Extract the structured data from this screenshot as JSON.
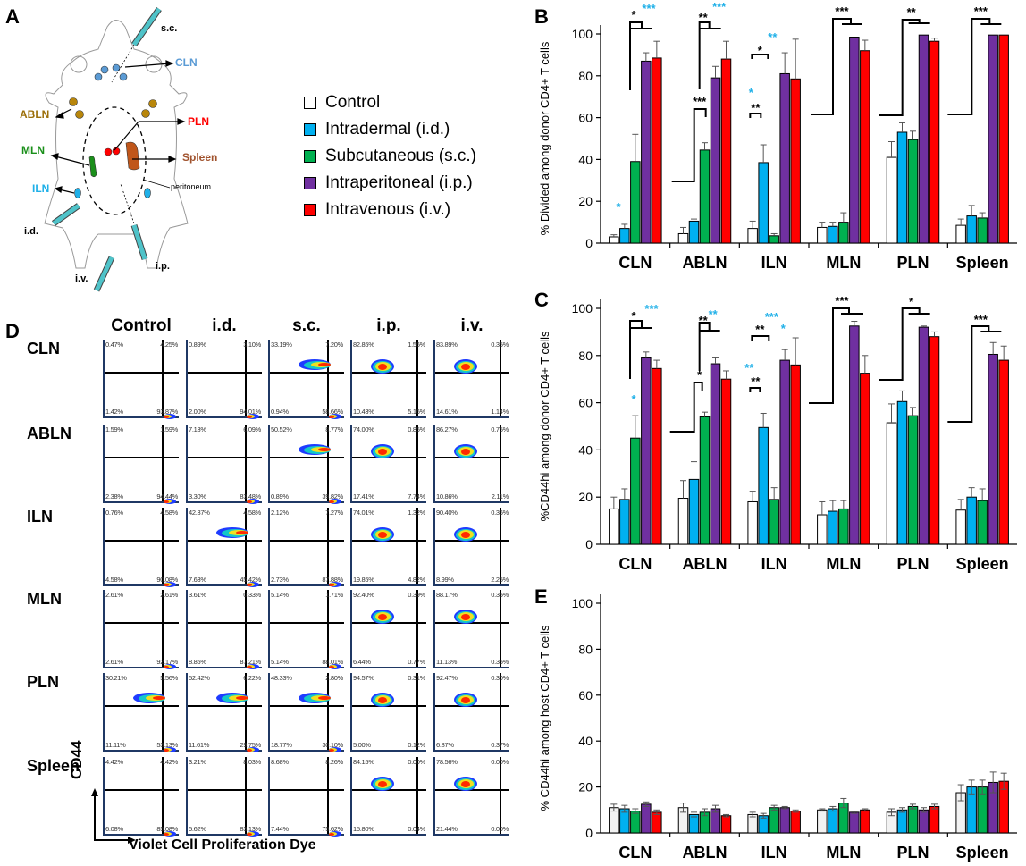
{
  "panels": {
    "A": "A",
    "B": "B",
    "C": "C",
    "D": "D",
    "E": "E"
  },
  "diagram": {
    "labels": {
      "sc": "s.c.",
      "CLN": "CLN",
      "ABLN": "ABLN",
      "PLN": "PLN",
      "MLN": "MLN",
      "Spleen": "Spleen",
      "ILN": "ILN",
      "peritoneum": "peritoneum",
      "id": "i.d.",
      "iv": "i.v.",
      "ip": "i.p."
    },
    "colors": {
      "CLN": "#5b9bd5",
      "ABLN": "#b8860b",
      "PLN": "#ff0000",
      "MLN": "#1a8f1a",
      "Spleen": "#c0561a",
      "ILN": "#1fb0e8",
      "syringe": "#4fc3c9"
    }
  },
  "legend": [
    {
      "label": "Control",
      "color": "#ffffff"
    },
    {
      "label": "Intradermal  (i.d.)",
      "color": "#00b0f0"
    },
    {
      "label": "Subcutaneous  (s.c.)",
      "color": "#00b050"
    },
    {
      "label": "Intraperitoneal  (i.p.)",
      "color": "#7030a0"
    },
    {
      "label": "Intravenous  (i.v.)",
      "color": "#ff0000"
    }
  ],
  "chart_data": [
    {
      "id": "B",
      "type": "bar",
      "title": "",
      "ylabel": "% Divided among donor CD4+  T cells",
      "xlabel": "",
      "ylim": [
        0,
        100
      ],
      "yticks": [
        0,
        20,
        40,
        60,
        80,
        100
      ],
      "grid": false,
      "categories": [
        "CLN",
        "ABLN",
        "ILN",
        "MLN",
        "PLN",
        "Spleen"
      ],
      "series": [
        {
          "name": "Control",
          "color": "#ffffff",
          "values": [
            3,
            4.5,
            7,
            7.5,
            41,
            8.5
          ],
          "errors": [
            1,
            3,
            3.5,
            2.5,
            7.5,
            3
          ]
        },
        {
          "name": "Intradermal (i.d.)",
          "color": "#00b0f0",
          "values": [
            7,
            10.5,
            38.5,
            8,
            53,
            13
          ],
          "errors": [
            2,
            1,
            8.5,
            2,
            4.5,
            5
          ]
        },
        {
          "name": "Subcutaneous (s.c.)",
          "color": "#00b050",
          "values": [
            39,
            44.5,
            3.5,
            10,
            49.5,
            12
          ],
          "errors": [
            13,
            3.5,
            1,
            4.5,
            4,
            2.5
          ]
        },
        {
          "name": "Intraperitoneal (i.p.)",
          "color": "#7030a0",
          "values": [
            87,
            79,
            81,
            98.5,
            99.5,
            99.5
          ],
          "errors": [
            4,
            5.5,
            10,
            0,
            0,
            0
          ]
        },
        {
          "name": "Intravenous (i.v.)",
          "color": "#ff0000",
          "values": [
            88.5,
            88,
            78.5,
            92,
            96.5,
            99.5
          ],
          "errors": [
            8,
            8.5,
            19,
            5,
            1.5,
            0
          ]
        }
      ],
      "annotations": [
        {
          "group": "CLN",
          "text": "*",
          "color": "black"
        },
        {
          "group": "CLN",
          "text": "***",
          "color": "cyan"
        },
        {
          "group": "CLN",
          "text": "*",
          "color": "cyan",
          "over": "Intradermal"
        },
        {
          "group": "ABLN",
          "text": "**",
          "color": "black"
        },
        {
          "group": "ABLN",
          "text": "***",
          "color": "cyan"
        },
        {
          "group": "ABLN",
          "text": "***",
          "color": "black"
        },
        {
          "group": "ILN",
          "text": "*",
          "color": "black"
        },
        {
          "group": "ILN",
          "text": "**",
          "color": "cyan"
        },
        {
          "group": "ILN",
          "text": "*",
          "color": "cyan"
        },
        {
          "group": "ILN",
          "text": "**",
          "color": "black"
        },
        {
          "group": "MLN",
          "text": "***",
          "color": "black"
        },
        {
          "group": "PLN",
          "text": "**",
          "color": "black"
        },
        {
          "group": "Spleen",
          "text": "***",
          "color": "black"
        }
      ]
    },
    {
      "id": "C",
      "type": "bar",
      "title": "",
      "ylabel": "%CD44hi  among donor CD4+  T cells",
      "xlabel": "",
      "ylim": [
        0,
        100
      ],
      "yticks": [
        0,
        20,
        40,
        60,
        80,
        100
      ],
      "grid": false,
      "categories": [
        "CLN",
        "ABLN",
        "ILN",
        "MLN",
        "PLN",
        "Spleen"
      ],
      "series": [
        {
          "name": "Control",
          "color": "#ffffff",
          "values": [
            15,
            19.5,
            18,
            12.5,
            51.5,
            14.5
          ],
          "errors": [
            5,
            7.5,
            4.5,
            5.5,
            8,
            4.5
          ]
        },
        {
          "name": "Intradermal (i.d.)",
          "color": "#00b0f0",
          "values": [
            19,
            27.5,
            49.5,
            14,
            60.5,
            20
          ],
          "errors": [
            4.5,
            7.5,
            6,
            4.5,
            4.5,
            4
          ]
        },
        {
          "name": "Subcutaneous (s.c.)",
          "color": "#00b050",
          "values": [
            45,
            54,
            19,
            15,
            54.5,
            18.5
          ],
          "errors": [
            9.5,
            2,
            5,
            3.5,
            3.5,
            5
          ]
        },
        {
          "name": "Intraperitoneal (i.p.)",
          "color": "#7030a0",
          "values": [
            79,
            76.5,
            78,
            92.5,
            92,
            80.5
          ],
          "errors": [
            2.5,
            2.5,
            4.5,
            2,
            0.5,
            5
          ]
        },
        {
          "name": "Intravenous (i.v.)",
          "color": "#ff0000",
          "values": [
            74.5,
            70,
            76,
            72.5,
            88,
            78
          ],
          "errors": [
            3.5,
            3.5,
            11.5,
            7.5,
            2,
            6
          ]
        }
      ],
      "annotations": [
        {
          "group": "CLN",
          "text": "*",
          "color": "black"
        },
        {
          "group": "CLN",
          "text": "***",
          "color": "cyan"
        },
        {
          "group": "CLN",
          "text": "*",
          "color": "cyan",
          "over": "Subcutaneous"
        },
        {
          "group": "ABLN",
          "text": "**",
          "color": "black"
        },
        {
          "group": "ABLN",
          "text": "**",
          "color": "cyan"
        },
        {
          "group": "ABLN",
          "text": "*",
          "color": "black"
        },
        {
          "group": "ILN",
          "text": "**",
          "color": "black"
        },
        {
          "group": "ILN",
          "text": "***",
          "color": "cyan"
        },
        {
          "group": "ILN",
          "text": "*",
          "color": "cyan"
        },
        {
          "group": "ILN",
          "text": "**",
          "color": "cyan"
        },
        {
          "group": "ILN",
          "text": "**",
          "color": "black"
        },
        {
          "group": "MLN",
          "text": "***",
          "color": "black"
        },
        {
          "group": "PLN",
          "text": "*",
          "color": "black"
        },
        {
          "group": "Spleen",
          "text": "***",
          "color": "black"
        }
      ]
    },
    {
      "id": "E",
      "type": "bar",
      "title": "",
      "ylabel": "% CD44hi among host CD4+  T cells",
      "xlabel": "",
      "ylim": [
        0,
        100
      ],
      "yticks": [
        0,
        20,
        40,
        60,
        80,
        100
      ],
      "grid": false,
      "categories": [
        "CLN",
        "ABLN",
        "ILN",
        "MLN",
        "PLN",
        "Spleen"
      ],
      "series": [
        {
          "name": "Control",
          "color": "#f2f2f2",
          "values": [
            11,
            11,
            8,
            10,
            9,
            17.5
          ],
          "errors": [
            1.5,
            2,
            1,
            0.5,
            1.5,
            3.5
          ]
        },
        {
          "name": "Intradermal (i.d.)",
          "color": "#00b0f0",
          "values": [
            10.5,
            8,
            7.5,
            10.5,
            10,
            20
          ],
          "errors": [
            1.5,
            1,
            1,
            1,
            1,
            3
          ]
        },
        {
          "name": "Subcutaneous (s.c.)",
          "color": "#00b050",
          "values": [
            9.5,
            9,
            11,
            13,
            11.5,
            20
          ],
          "errors": [
            1,
            1.5,
            1,
            2,
            1,
            3
          ]
        },
        {
          "name": "Intraperitoneal (i.p.)",
          "color": "#7030a0",
          "values": [
            12.5,
            10.5,
            11,
            9,
            10,
            22
          ],
          "errors": [
            1,
            1.5,
            0.5,
            0.5,
            1,
            4.5
          ]
        },
        {
          "name": "Intravenous (i.v.)",
          "color": "#ff0000",
          "values": [
            9,
            7.5,
            9.5,
            10,
            11.5,
            22.5
          ],
          "errors": [
            1,
            0.5,
            0.5,
            0.5,
            1,
            3.5
          ]
        }
      ],
      "annotations": []
    }
  ],
  "flow": {
    "columns": [
      "Control",
      "i.d.",
      "s.c.",
      "i.p.",
      "i.v."
    ],
    "rows": [
      {
        "label": "CLN",
        "plots": [
          {
            "ul": "0.47%",
            "ur": "4.25%",
            "ll": "1.42%",
            "lr": "93.87%"
          },
          {
            "ul": "0.89%",
            "ur": "3.10%",
            "ll": "2.00%",
            "lr": "94.01%"
          },
          {
            "ul": "33.19%",
            "ur": "7.20%",
            "ll": "0.94%",
            "lr": "58.66%"
          },
          {
            "ul": "82.85%",
            "ur": "1.56%",
            "ll": "10.43%",
            "lr": "5.16%"
          },
          {
            "ul": "83.89%",
            "ur": "0.35%",
            "ll": "14.61%",
            "lr": "1.14%"
          }
        ]
      },
      {
        "label": "ABLN",
        "plots": [
          {
            "ul": "1.59%",
            "ur": "1.59%",
            "ll": "2.38%",
            "lr": "94.44%"
          },
          {
            "ul": "7.13%",
            "ur": "6.09%",
            "ll": "3.30%",
            "lr": "83.48%"
          },
          {
            "ul": "50.52%",
            "ur": "8.77%",
            "ll": "0.89%",
            "lr": "39.82%"
          },
          {
            "ul": "74.00%",
            "ur": "0.85%",
            "ll": "17.41%",
            "lr": "7.74%"
          },
          {
            "ul": "86.27%",
            "ur": "0.75%",
            "ll": "10.86%",
            "lr": "2.11%"
          }
        ]
      },
      {
        "label": "ILN",
        "plots": [
          {
            "ul": "0.76%",
            "ur": "4.58%",
            "ll": "4.58%",
            "lr": "90.08%"
          },
          {
            "ul": "42.37%",
            "ur": "4.58%",
            "ll": "7.63%",
            "lr": "45.42%"
          },
          {
            "ul": "2.12%",
            "ur": "7.27%",
            "ll": "2.73%",
            "lr": "87.88%"
          },
          {
            "ul": "74.01%",
            "ur": "1.32%",
            "ll": "19.85%",
            "lr": "4.82%"
          },
          {
            "ul": "90.40%",
            "ur": "0.36%",
            "ll": "8.99%",
            "lr": "2.25%"
          }
        ]
      },
      {
        "label": "MLN",
        "plots": [
          {
            "ul": "2.61%",
            "ur": "2.61%",
            "ll": "2.61%",
            "lr": "92.17%"
          },
          {
            "ul": "3.61%",
            "ur": "0.33%",
            "ll": "8.85%",
            "lr": "87.21%"
          },
          {
            "ul": "5.14%",
            "ur": "1.71%",
            "ll": "5.14%",
            "lr": "88.01%"
          },
          {
            "ul": "92.40%",
            "ur": "0.39%",
            "ll": "6.44%",
            "lr": "0.77%"
          },
          {
            "ul": "88.17%",
            "ur": "0.35%",
            "ll": "11.13%",
            "lr": "0.35%"
          }
        ]
      },
      {
        "label": "PLN",
        "plots": [
          {
            "ul": "30.21%",
            "ur": "5.56%",
            "ll": "11.11%",
            "lr": "53.13%"
          },
          {
            "ul": "52.42%",
            "ur": "6.22%",
            "ll": "11.61%",
            "lr": "29.75%"
          },
          {
            "ul": "48.33%",
            "ur": "2.80%",
            "ll": "18.77%",
            "lr": "30.10%"
          },
          {
            "ul": "94.57%",
            "ur": "0.31%",
            "ll": "5.00%",
            "lr": "0.12%"
          },
          {
            "ul": "92.47%",
            "ur": "0.30%",
            "ll": "6.87%",
            "lr": "0.37%"
          }
        ]
      },
      {
        "label": "Spleen",
        "plots": [
          {
            "ul": "4.42%",
            "ur": "4.42%",
            "ll": "6.08%",
            "lr": "85.08%"
          },
          {
            "ul": "3.21%",
            "ur": "8.03%",
            "ll": "5.62%",
            "lr": "83.13%"
          },
          {
            "ul": "8.68%",
            "ur": "8.26%",
            "ll": "7.44%",
            "lr": "75.62%"
          },
          {
            "ul": "84.15%",
            "ur": "0.00%",
            "ll": "15.80%",
            "lr": "0.04%"
          },
          {
            "ul": "78.56%",
            "ur": "0.00%",
            "ll": "21.44%",
            "lr": "0.00%"
          }
        ]
      }
    ],
    "y_axis_label": "CD44",
    "x_axis_label": "Violet Cell Proliferation Dye"
  }
}
